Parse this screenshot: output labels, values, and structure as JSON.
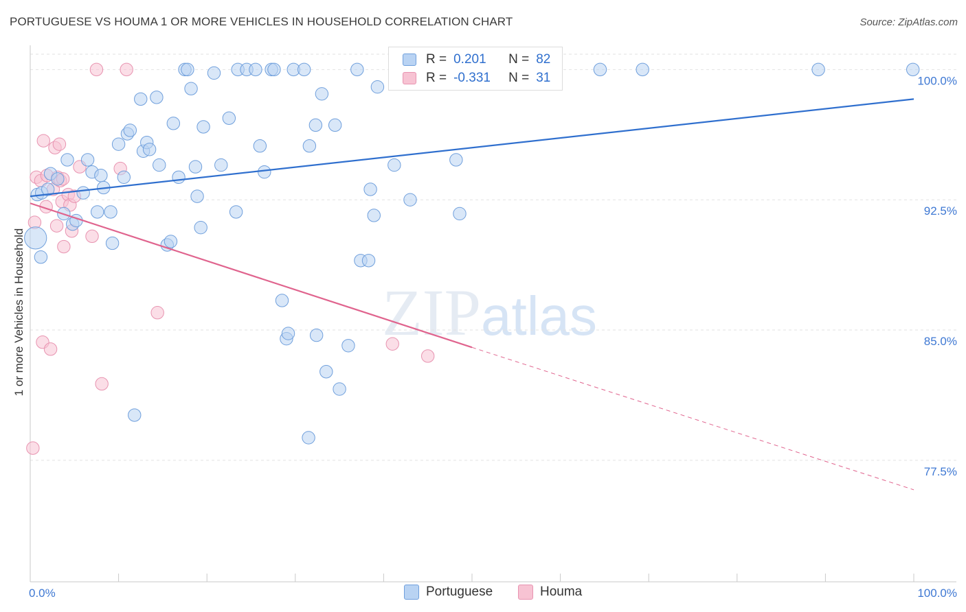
{
  "title": "PORTUGUESE VS HOUMA 1 OR MORE VEHICLES IN HOUSEHOLD CORRELATION CHART",
  "source": "Source: ZipAtlas.com",
  "watermark": {
    "zip": "ZIP",
    "atlas": "atlas"
  },
  "colors": {
    "portuguese_fill": "#b9d3f3",
    "portuguese_stroke": "#6f9fdc",
    "portuguese_line": "#2f6fce",
    "houma_fill": "#f7c3d3",
    "houma_stroke": "#e893b0",
    "houma_line": "#e0648e",
    "tick_label": "#3e78d3",
    "grid": "#e2e2e2"
  },
  "legend": {
    "rows": [
      {
        "r_label": "R =",
        "r_value": "0.201",
        "n_label": "N =",
        "n_value": "82"
      },
      {
        "r_label": "R =",
        "r_value": "-0.331",
        "n_label": "N =",
        "n_value": "31"
      }
    ],
    "series_names": [
      "Portuguese",
      "Houma"
    ]
  },
  "chart_data": {
    "type": "scatter",
    "title": "PORTUGUESE VS HOUMA 1 OR MORE VEHICLES IN HOUSEHOLD CORRELATION CHART",
    "xlabel": "",
    "ylabel": "1 or more Vehicles in Household",
    "xlim": [
      0,
      100
    ],
    "ylim": [
      70.5,
      101.2
    ],
    "x_tick_labels": [
      "0.0%",
      "100.0%"
    ],
    "y_ticks": [
      77.5,
      85.0,
      92.5,
      100.0
    ],
    "y_tick_labels": [
      "77.5%",
      "85.0%",
      "92.5%",
      "100.0%"
    ],
    "grid": true,
    "legend_position": "top-center",
    "series": [
      {
        "name": "Portuguese",
        "r": 0.201,
        "n": 82,
        "trend": {
          "x0": 0,
          "y0": 92.7,
          "x1": 100,
          "y1": 98.3
        },
        "points": [
          [
            0.6,
            90.3,
            14
          ],
          [
            0.8,
            92.8,
            8
          ],
          [
            1.3,
            92.9,
            8
          ],
          [
            2.0,
            93.1,
            8
          ],
          [
            2.3,
            94.0,
            8
          ],
          [
            3.1,
            93.7,
            8
          ],
          [
            3.8,
            91.7,
            8
          ],
          [
            4.2,
            94.8,
            8
          ],
          [
            4.8,
            91.1,
            8
          ],
          [
            5.2,
            91.3,
            8
          ],
          [
            6.0,
            92.9,
            8
          ],
          [
            6.5,
            94.8,
            8
          ],
          [
            7.0,
            94.1,
            8
          ],
          [
            7.6,
            91.8,
            8
          ],
          [
            8.0,
            93.9,
            8
          ],
          [
            8.3,
            93.2,
            8
          ],
          [
            9.1,
            91.8,
            8
          ],
          [
            9.3,
            90.0,
            8
          ],
          [
            10.0,
            95.7,
            8
          ],
          [
            10.6,
            93.8,
            8
          ],
          [
            11.0,
            96.3,
            8
          ],
          [
            11.3,
            96.5,
            8
          ],
          [
            12.5,
            98.3,
            8
          ],
          [
            12.8,
            95.3,
            8
          ],
          [
            13.2,
            95.8,
            8
          ],
          [
            13.5,
            95.4,
            8
          ],
          [
            14.3,
            98.4,
            8
          ],
          [
            14.6,
            94.5,
            8
          ],
          [
            15.5,
            89.9,
            8
          ],
          [
            15.9,
            90.1,
            8
          ],
          [
            16.2,
            96.9,
            8
          ],
          [
            16.8,
            93.8,
            8
          ],
          [
            17.5,
            100.0,
            8
          ],
          [
            17.8,
            100.0,
            8
          ],
          [
            18.7,
            94.4,
            8
          ],
          [
            18.2,
            98.9,
            8
          ],
          [
            18.9,
            92.7,
            8
          ],
          [
            19.3,
            90.9,
            8
          ],
          [
            19.6,
            96.7,
            8
          ],
          [
            20.8,
            99.8,
            8
          ],
          [
            21.6,
            94.5,
            8
          ],
          [
            22.5,
            97.2,
            8
          ],
          [
            23.3,
            91.8,
            8
          ],
          [
            23.5,
            100.0,
            8
          ],
          [
            24.5,
            100.0,
            8
          ],
          [
            25.5,
            100.0,
            8
          ],
          [
            26.0,
            95.6,
            8
          ],
          [
            26.5,
            94.1,
            8
          ],
          [
            27.3,
            100.0,
            8
          ],
          [
            27.6,
            100.0,
            8
          ],
          [
            28.5,
            86.7,
            8
          ],
          [
            29.0,
            84.5,
            8
          ],
          [
            29.2,
            84.8,
            8
          ],
          [
            29.8,
            100.0,
            8
          ],
          [
            31.0,
            100.0,
            8
          ],
          [
            31.5,
            78.8,
            8
          ],
          [
            31.6,
            95.6,
            8
          ],
          [
            32.3,
            96.8,
            8
          ],
          [
            32.4,
            84.7,
            8
          ],
          [
            33.0,
            98.6,
            8
          ],
          [
            33.5,
            82.6,
            8
          ],
          [
            34.5,
            96.8,
            8
          ],
          [
            35.0,
            81.6,
            8
          ],
          [
            36.0,
            84.1,
            8
          ],
          [
            37.0,
            100.0,
            8
          ],
          [
            37.4,
            89.0,
            8
          ],
          [
            38.3,
            89.0,
            8
          ],
          [
            38.5,
            93.1,
            8
          ],
          [
            38.9,
            91.6,
            8
          ],
          [
            39.3,
            99.0,
            8
          ],
          [
            41.2,
            94.5,
            8
          ],
          [
            43.0,
            92.5,
            8
          ],
          [
            46.1,
            100.0,
            8
          ],
          [
            48.2,
            94.8,
            8
          ],
          [
            48.6,
            91.7,
            8
          ],
          [
            51.0,
            100.0,
            8
          ],
          [
            64.5,
            100.0,
            8
          ],
          [
            69.3,
            100.0,
            8
          ],
          [
            89.2,
            100.0,
            8
          ],
          [
            99.9,
            100.0,
            8
          ],
          [
            1.2,
            89.2,
            8
          ],
          [
            11.8,
            80.1,
            8
          ]
        ]
      },
      {
        "name": "Houma",
        "r": -0.331,
        "n": 31,
        "trend": {
          "x0": 0,
          "y0": 92.3,
          "x1": 50,
          "y1": 84.0,
          "dash_to": {
            "x": 100,
            "y": 75.8
          }
        },
        "points": [
          [
            0.3,
            78.2,
            8
          ],
          [
            0.5,
            91.2,
            8
          ],
          [
            0.7,
            93.8,
            8
          ],
          [
            1.2,
            93.6,
            8
          ],
          [
            1.4,
            84.3,
            8
          ],
          [
            1.5,
            95.9,
            8
          ],
          [
            1.8,
            92.1,
            8
          ],
          [
            1.9,
            93.9,
            8
          ],
          [
            2.3,
            83.9,
            8
          ],
          [
            2.6,
            93.1,
            8
          ],
          [
            2.8,
            95.5,
            8
          ],
          [
            3.0,
            91.0,
            8
          ],
          [
            3.1,
            93.8,
            8
          ],
          [
            3.3,
            95.7,
            8
          ],
          [
            3.4,
            93.6,
            8
          ],
          [
            3.6,
            92.4,
            8
          ],
          [
            3.7,
            93.7,
            8
          ],
          [
            3.8,
            89.8,
            8
          ],
          [
            4.3,
            92.8,
            8
          ],
          [
            4.5,
            92.2,
            8
          ],
          [
            4.7,
            90.7,
            8
          ],
          [
            5.0,
            92.7,
            8
          ],
          [
            5.6,
            94.4,
            8
          ],
          [
            7.0,
            90.4,
            8
          ],
          [
            7.5,
            100.0,
            8
          ],
          [
            8.1,
            81.9,
            8
          ],
          [
            10.2,
            94.3,
            8
          ],
          [
            10.9,
            100.0,
            8
          ],
          [
            14.4,
            86.0,
            8
          ],
          [
            41.0,
            84.2,
            8
          ],
          [
            45.0,
            83.5,
            8
          ]
        ]
      }
    ]
  }
}
